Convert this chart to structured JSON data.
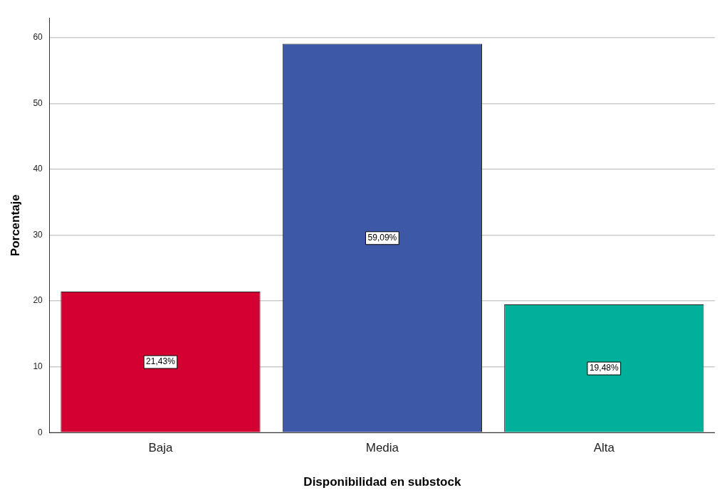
{
  "chart_data": {
    "type": "bar",
    "xlabel": "Disponibilidad en substock",
    "ylabel": "Porcentaje",
    "categories": [
      "Baja",
      "Media",
      "Alta"
    ],
    "values": [
      21.43,
      59.09,
      19.48
    ],
    "colors": [
      "#d50032",
      "#3e58a8",
      "#00b09b"
    ],
    "value_labels": [
      "21,43%",
      "59,09%",
      "19,48%"
    ],
    "ylim": [
      0,
      63
    ],
    "yticks": [
      0,
      10,
      20,
      30,
      40,
      50,
      60
    ],
    "grid": "y",
    "legend": false
  }
}
